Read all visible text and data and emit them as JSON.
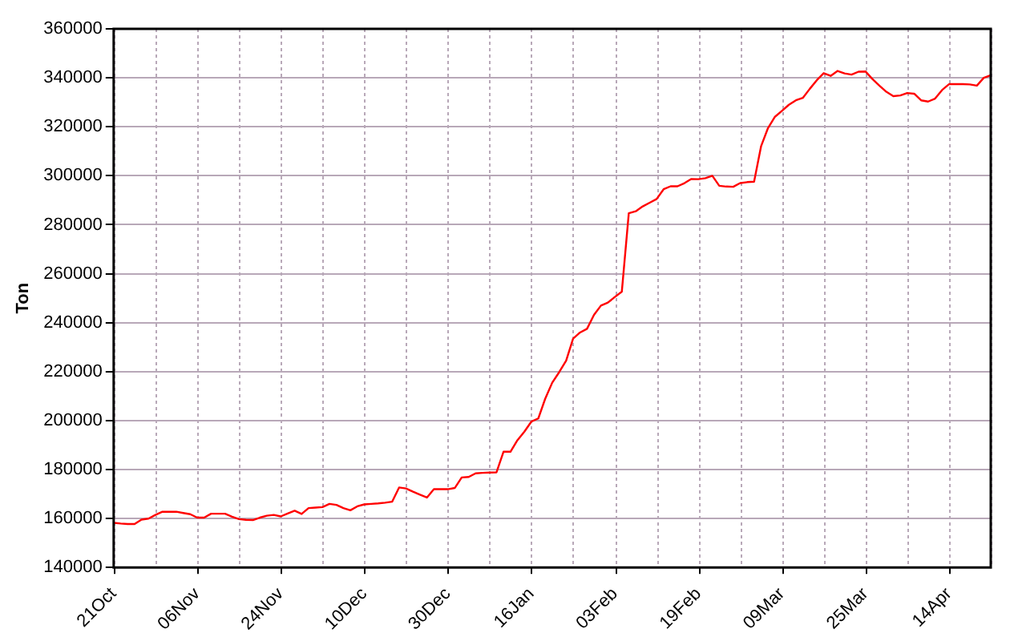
{
  "chart_data": {
    "type": "line",
    "ylabel": "Ton",
    "categories": [
      "21Oct",
      null,
      null,
      null,
      null,
      null,
      null,
      null,
      null,
      null,
      null,
      null,
      "06Nov",
      null,
      null,
      null,
      null,
      null,
      null,
      null,
      null,
      null,
      null,
      null,
      "24Nov",
      null,
      null,
      null,
      null,
      null,
      null,
      null,
      null,
      null,
      null,
      null,
      "10Dec",
      null,
      null,
      null,
      null,
      null,
      null,
      null,
      null,
      null,
      null,
      null,
      "30Dec",
      null,
      null,
      null,
      null,
      null,
      null,
      null,
      null,
      null,
      null,
      null,
      "16Jan",
      null,
      null,
      null,
      null,
      null,
      null,
      null,
      null,
      null,
      null,
      null,
      "03Feb",
      null,
      null,
      null,
      null,
      null,
      null,
      null,
      null,
      null,
      null,
      null,
      "19Feb",
      null,
      null,
      null,
      null,
      null,
      null,
      null,
      null,
      null,
      null,
      null,
      "09Mar",
      null,
      null,
      null,
      null,
      null,
      null,
      null,
      null,
      null,
      null,
      null,
      "25Mar",
      null,
      null,
      null,
      null,
      null,
      null,
      null,
      null,
      null,
      null,
      null,
      "14Apr",
      null,
      null,
      null,
      null,
      null,
      null
    ],
    "series": [
      {
        "color": "#ff0000",
        "values": [
          158300,
          158000,
          157800,
          157800,
          159600,
          160000,
          161500,
          162800,
          162800,
          162800,
          162300,
          161800,
          160400,
          160400,
          162000,
          162000,
          162000,
          160800,
          159800,
          159500,
          159400,
          160400,
          161200,
          161500,
          160900,
          162100,
          163200,
          161900,
          164300,
          164500,
          164700,
          166000,
          165600,
          164300,
          163400,
          165000,
          165800,
          166000,
          166200,
          166500,
          166900,
          172700,
          172300,
          171000,
          169800,
          168600,
          172000,
          172000,
          172000,
          172500,
          176800,
          177000,
          178500,
          178700,
          178800,
          178900,
          187300,
          187300,
          192000,
          195500,
          199600,
          200900,
          209000,
          215500,
          219800,
          224500,
          233500,
          236000,
          237500,
          243200,
          247000,
          248200,
          250500,
          252700,
          284700,
          285500,
          287500,
          289000,
          290500,
          294500,
          295700,
          295700,
          297000,
          298700,
          298600,
          299000,
          300000,
          295900,
          295600,
          295500,
          297000,
          297400,
          297600,
          312000,
          319500,
          324100,
          326500,
          329000,
          330800,
          331800,
          335500,
          339000,
          341900,
          340800,
          342800,
          341800,
          341300,
          342500,
          342600,
          339500,
          336800,
          334300,
          332500,
          332800,
          333800,
          333500,
          330800,
          330300,
          331500,
          335000,
          337400,
          337400,
          337400,
          337300,
          336800,
          340000,
          341100
        ]
      }
    ],
    "ylim": [
      140000,
      360000
    ],
    "yticks": [
      140000,
      160000,
      180000,
      200000,
      220000,
      240000,
      260000,
      280000,
      300000,
      320000,
      340000,
      360000
    ],
    "grid": true,
    "marker": "none"
  }
}
